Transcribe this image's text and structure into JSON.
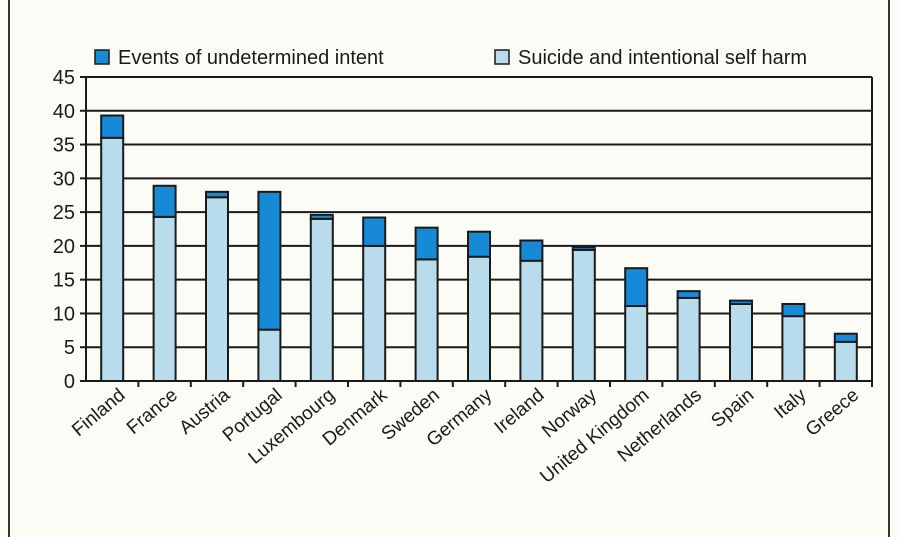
{
  "chart_data": {
    "type": "bar",
    "stacked": true,
    "categories": [
      "Finland",
      "France",
      "Austria",
      "Portugal",
      "Luxembourg",
      "Denmark",
      "Sweden",
      "Germany",
      "Ireland",
      "Norway",
      "United Kingdom",
      "Netherlands",
      "Spain",
      "Italy",
      "Greece"
    ],
    "series": [
      {
        "name": "Suicide and intentional self harm",
        "color": "#b8dcec",
        "values": [
          36.0,
          24.3,
          27.2,
          7.6,
          24.0,
          20.0,
          18.0,
          18.4,
          17.8,
          19.4,
          11.1,
          12.3,
          11.4,
          9.6,
          5.8
        ]
      },
      {
        "name": "Events of undetermined intent",
        "color": "#168ad6",
        "values": [
          3.3,
          4.6,
          0.8,
          20.4,
          0.6,
          4.2,
          4.7,
          3.7,
          3.0,
          0.4,
          5.6,
          1.0,
          0.5,
          1.8,
          1.2
        ]
      }
    ],
    "legend": [
      "Events of undetermined intent",
      "Suicide and intentional self harm"
    ],
    "legend_position": "top",
    "ylim": [
      0,
      45
    ],
    "yticks": [
      "0",
      "5",
      "10",
      "15",
      "20",
      "25",
      "30",
      "35",
      "40",
      "45"
    ],
    "grid": true,
    "title": "",
    "xlabel": "",
    "ylabel": ""
  }
}
